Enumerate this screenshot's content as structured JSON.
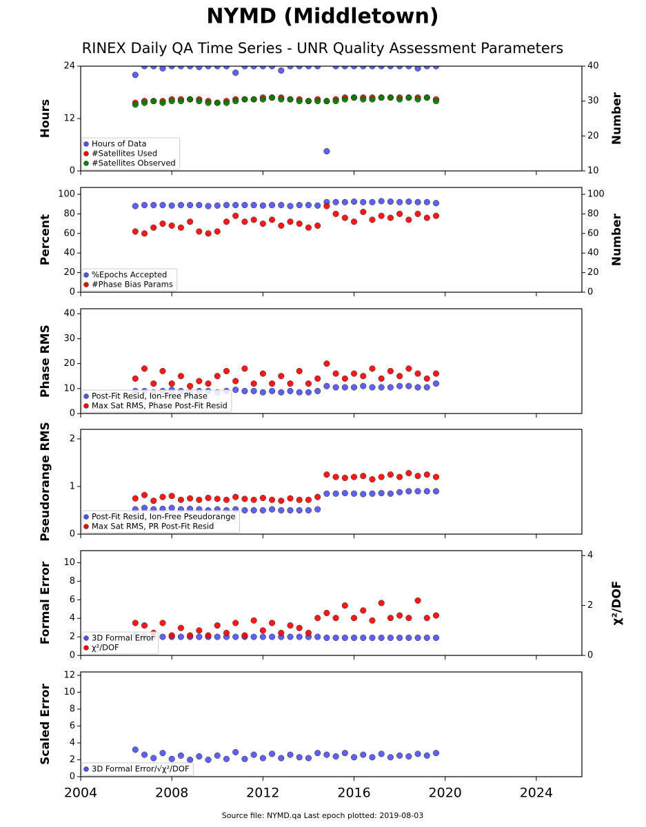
{
  "title": "NYMD (Middletown)",
  "subtitle": "RINEX Daily QA Time Series - UNR Quality Assessment Parameters",
  "source": "Source file: NYMD.qa Last epoch plotted: 2019-08-03",
  "chart_data": [
    {
      "type": "scatter",
      "ylabel": "Hours",
      "y2label": "Number",
      "legend": "lower left",
      "xlim": [
        2004,
        2026
      ],
      "xticks": [
        2004,
        2008,
        2012,
        2016,
        2020,
        2024
      ],
      "ylim": [
        0,
        24
      ],
      "yticks": [
        0,
        12,
        24
      ],
      "y2lim": [
        10,
        40
      ],
      "y2ticks": [
        10,
        20,
        30,
        40
      ],
      "x": [
        2006.4,
        2006.8,
        2007.2,
        2007.6,
        2008.0,
        2008.4,
        2008.8,
        2009.2,
        2009.6,
        2010.0,
        2010.4,
        2010.8,
        2011.2,
        2011.6,
        2012.0,
        2012.4,
        2012.8,
        2013.2,
        2013.6,
        2014.0,
        2014.4,
        2014.8,
        2015.2,
        2015.6,
        2016.0,
        2016.4,
        2016.8,
        2017.2,
        2017.6,
        2018.0,
        2018.4,
        2018.8,
        2019.2,
        2019.6
      ],
      "series": [
        {
          "name": "Hours of Data",
          "color": "#5050f0",
          "values": [
            22,
            24,
            24,
            23.5,
            24,
            24,
            24,
            23.8,
            24,
            24,
            24,
            22.5,
            24,
            24,
            24,
            24,
            23,
            24,
            24,
            24,
            24,
            4.5,
            24,
            24,
            24,
            24,
            24,
            24,
            24,
            24,
            24,
            23.5,
            24,
            24
          ]
        },
        {
          "name": "#Satellites Used",
          "color": "#ff0000",
          "axis": "y2",
          "values": [
            29.5,
            30,
            30,
            30,
            30.5,
            30.5,
            30.5,
            30.5,
            30,
            29.5,
            30,
            30.5,
            30.5,
            30.5,
            31,
            31,
            31,
            30.5,
            30.5,
            30,
            30.5,
            30,
            30.5,
            31,
            31,
            31,
            31,
            31,
            31,
            31,
            31,
            31,
            31,
            30.5
          ]
        },
        {
          "name": "#Satellites Observed",
          "color": "#008000",
          "axis": "y2",
          "values": [
            29,
            29.5,
            30,
            29.5,
            30,
            30,
            30.5,
            30,
            29.5,
            29.5,
            29.5,
            30,
            30.5,
            30.5,
            30.5,
            31,
            30.5,
            30.5,
            30,
            30,
            30,
            30,
            30,
            30.5,
            31,
            30.5,
            30.5,
            31,
            31,
            30.5,
            31,
            30.5,
            31,
            30
          ]
        }
      ]
    },
    {
      "type": "scatter",
      "ylabel": "Percent",
      "y2label": "Number",
      "legend": "lower left",
      "xlim": [
        2004,
        2026
      ],
      "xticks": [
        2004,
        2008,
        2012,
        2016,
        2020,
        2024
      ],
      "ylim": [
        0,
        107
      ],
      "yticks": [
        0,
        20,
        40,
        60,
        80,
        100
      ],
      "y2lim": [
        0,
        107
      ],
      "y2ticks": [
        0,
        20,
        40,
        60,
        80,
        100
      ],
      "x": [
        2006.4,
        2006.8,
        2007.2,
        2007.6,
        2008.0,
        2008.4,
        2008.8,
        2009.2,
        2009.6,
        2010.0,
        2010.4,
        2010.8,
        2011.2,
        2011.6,
        2012.0,
        2012.4,
        2012.8,
        2013.2,
        2013.6,
        2014.0,
        2014.4,
        2014.8,
        2015.2,
        2015.6,
        2016.0,
        2016.4,
        2016.8,
        2017.2,
        2017.6,
        2018.0,
        2018.4,
        2018.8,
        2019.2,
        2019.6
      ],
      "series": [
        {
          "name": "%Epochs Accepted",
          "color": "#5050f0",
          "values": [
            88,
            89,
            89,
            89,
            88.5,
            89,
            89,
            89,
            88,
            88.5,
            89,
            89,
            89,
            89,
            88.5,
            89,
            89,
            88,
            89,
            89,
            88.5,
            92,
            92,
            92,
            92.5,
            92,
            92,
            93,
            92.5,
            92,
            92.5,
            92,
            92,
            91
          ]
        },
        {
          "name": "#Phase Bias Params",
          "color": "#ff0000",
          "axis": "y2",
          "values": [
            62,
            60,
            66,
            70,
            68,
            66,
            72,
            62,
            60,
            62,
            72,
            78,
            72,
            74,
            70,
            74,
            68,
            72,
            70,
            66,
            68,
            88,
            80,
            76,
            72,
            82,
            74,
            78,
            76,
            80,
            74,
            80,
            76,
            78
          ]
        }
      ]
    },
    {
      "type": "scatter",
      "ylabel": "Phase RMS",
      "legend": "lower left",
      "xlim": [
        2004,
        2026
      ],
      "xticks": [
        2004,
        2008,
        2012,
        2016,
        2020,
        2024
      ],
      "ylim": [
        0,
        42
      ],
      "yticks": [
        0,
        10,
        20,
        30,
        40
      ],
      "x": [
        2006.4,
        2006.8,
        2007.2,
        2007.6,
        2008.0,
        2008.4,
        2008.8,
        2009.2,
        2009.6,
        2010.0,
        2010.4,
        2010.8,
        2011.2,
        2011.6,
        2012.0,
        2012.4,
        2012.8,
        2013.2,
        2013.6,
        2014.0,
        2014.4,
        2014.8,
        2015.2,
        2015.6,
        2016.0,
        2016.4,
        2016.8,
        2017.2,
        2017.6,
        2018.0,
        2018.4,
        2018.8,
        2019.2,
        2019.6
      ],
      "series": [
        {
          "name": "Post-Fit Resid, Ion-Free Phase",
          "color": "#5050f0",
          "values": [
            9,
            9,
            8.5,
            9,
            9.5,
            9,
            8.5,
            9,
            9,
            8.5,
            9,
            9.5,
            9,
            9,
            8.5,
            9,
            8.5,
            9,
            8.5,
            8.5,
            9,
            11,
            10.5,
            10.5,
            10.5,
            11,
            10.5,
            10.5,
            10.5,
            11,
            11,
            10.5,
            10.5,
            12
          ]
        },
        {
          "name": "Max Sat RMS, Phase Post-Fit Resid",
          "color": "#ff0000",
          "values": [
            14,
            18,
            12,
            17,
            12,
            15,
            11,
            13,
            12,
            15,
            17,
            13,
            18,
            12,
            16,
            12,
            15,
            12,
            17,
            12,
            14,
            20,
            16,
            14,
            16,
            15,
            18,
            14,
            17,
            15,
            18,
            16,
            14,
            16
          ]
        }
      ]
    },
    {
      "type": "scatter",
      "ylabel": "Pseudorange RMS",
      "legend": "lower left",
      "xlim": [
        2004,
        2026
      ],
      "xticks": [
        2004,
        2008,
        2012,
        2016,
        2020,
        2024
      ],
      "ylim": [
        0,
        2.2
      ],
      "yticks": [
        0,
        1,
        2
      ],
      "x": [
        2006.4,
        2006.8,
        2007.2,
        2007.6,
        2008.0,
        2008.4,
        2008.8,
        2009.2,
        2009.6,
        2010.0,
        2010.4,
        2010.8,
        2011.2,
        2011.6,
        2012.0,
        2012.4,
        2012.8,
        2013.2,
        2013.6,
        2014.0,
        2014.4,
        2014.8,
        2015.2,
        2015.6,
        2016.0,
        2016.4,
        2016.8,
        2017.2,
        2017.6,
        2018.0,
        2018.4,
        2018.8,
        2019.2,
        2019.6
      ],
      "series": [
        {
          "name": "Post-Fit Resid, Ion-Free Pseudorange",
          "color": "#5050f0",
          "values": [
            0.52,
            0.55,
            0.52,
            0.53,
            0.55,
            0.52,
            0.53,
            0.52,
            0.5,
            0.52,
            0.5,
            0.52,
            0.5,
            0.5,
            0.5,
            0.52,
            0.5,
            0.5,
            0.5,
            0.5,
            0.52,
            0.85,
            0.85,
            0.86,
            0.85,
            0.84,
            0.85,
            0.86,
            0.85,
            0.88,
            0.9,
            0.9,
            0.9,
            0.9
          ]
        },
        {
          "name": "Max Sat RMS, PR Post-Fit Resid",
          "color": "#ff0000",
          "values": [
            0.75,
            0.82,
            0.7,
            0.78,
            0.8,
            0.72,
            0.75,
            0.72,
            0.76,
            0.74,
            0.72,
            0.78,
            0.74,
            0.72,
            0.76,
            0.72,
            0.7,
            0.75,
            0.72,
            0.72,
            0.78,
            1.25,
            1.2,
            1.18,
            1.2,
            1.22,
            1.15,
            1.2,
            1.25,
            1.2,
            1.28,
            1.22,
            1.25,
            1.2
          ]
        }
      ]
    },
    {
      "type": "scatter",
      "ylabel": "Formal Error",
      "y2label": "χ²/DOF",
      "legend": "lower left",
      "xlim": [
        2004,
        2026
      ],
      "xticks": [
        2004,
        2008,
        2012,
        2016,
        2020,
        2024
      ],
      "ylim": [
        0,
        11.3
      ],
      "yticks": [
        0,
        2,
        4,
        6,
        8,
        10
      ],
      "y2lim": [
        0,
        4.2
      ],
      "y2ticks": [
        0,
        2,
        4
      ],
      "x": [
        2006.4,
        2006.8,
        2007.2,
        2007.6,
        2008.0,
        2008.4,
        2008.8,
        2009.2,
        2009.6,
        2010.0,
        2010.4,
        2010.8,
        2011.2,
        2011.6,
        2012.0,
        2012.4,
        2012.8,
        2013.2,
        2013.6,
        2014.0,
        2014.4,
        2014.8,
        2015.2,
        2015.6,
        2016.0,
        2016.4,
        2016.8,
        2017.2,
        2017.6,
        2018.0,
        2018.4,
        2018.8,
        2019.2,
        2019.6
      ],
      "series": [
        {
          "name": "3D Formal Error",
          "color": "#5050f0",
          "values": [
            2.2,
            2.1,
            2,
            2,
            2,
            2,
            2,
            2,
            2,
            2,
            2,
            2,
            2,
            2,
            2,
            2,
            2,
            2,
            2,
            2,
            2,
            1.9,
            1.9,
            1.9,
            1.9,
            1.9,
            1.9,
            1.9,
            1.9,
            1.9,
            1.9,
            1.9,
            1.9,
            1.9
          ]
        },
        {
          "name": "χ²/DOF",
          "color": "#ff0000",
          "axis": "y2",
          "values": [
            1.3,
            1.2,
            0.9,
            1.3,
            0.8,
            1.1,
            0.8,
            1.0,
            0.8,
            1.2,
            0.9,
            1.3,
            0.8,
            1.4,
            1.0,
            1.3,
            0.9,
            1.2,
            1.1,
            0.9,
            1.5,
            1.7,
            1.5,
            2.0,
            1.5,
            1.8,
            1.4,
            2.1,
            1.5,
            1.6,
            1.5,
            2.2,
            1.5,
            1.6
          ]
        }
      ]
    },
    {
      "type": "scatter",
      "ylabel": "Scaled Error",
      "legend": "lower left",
      "xlim": [
        2004,
        2026
      ],
      "xticks": [
        2004,
        2008,
        2012,
        2016,
        2020,
        2024
      ],
      "ylim": [
        0,
        12.4
      ],
      "yticks": [
        0,
        2,
        4,
        6,
        8,
        10,
        12
      ],
      "x": [
        2006.4,
        2006.8,
        2007.2,
        2007.6,
        2008.0,
        2008.4,
        2008.8,
        2009.2,
        2009.6,
        2010.0,
        2010.4,
        2010.8,
        2011.2,
        2011.6,
        2012.0,
        2012.4,
        2012.8,
        2013.2,
        2013.6,
        2014.0,
        2014.4,
        2014.8,
        2015.2,
        2015.6,
        2016.0,
        2016.4,
        2016.8,
        2017.2,
        2017.6,
        2018.0,
        2018.4,
        2018.8,
        2019.2,
        2019.6
      ],
      "series": [
        {
          "name": "3D Formal Error/√χ²/DOF",
          "color": "#5050f0",
          "values": [
            3.2,
            2.6,
            2.2,
            2.8,
            2.1,
            2.5,
            2.0,
            2.4,
            2.0,
            2.5,
            2.1,
            2.9,
            2.1,
            2.6,
            2.2,
            2.7,
            2.2,
            2.6,
            2.3,
            2.2,
            2.8,
            2.6,
            2.4,
            2.8,
            2.3,
            2.6,
            2.3,
            2.7,
            2.3,
            2.5,
            2.4,
            2.7,
            2.5,
            2.8
          ]
        }
      ]
    }
  ]
}
